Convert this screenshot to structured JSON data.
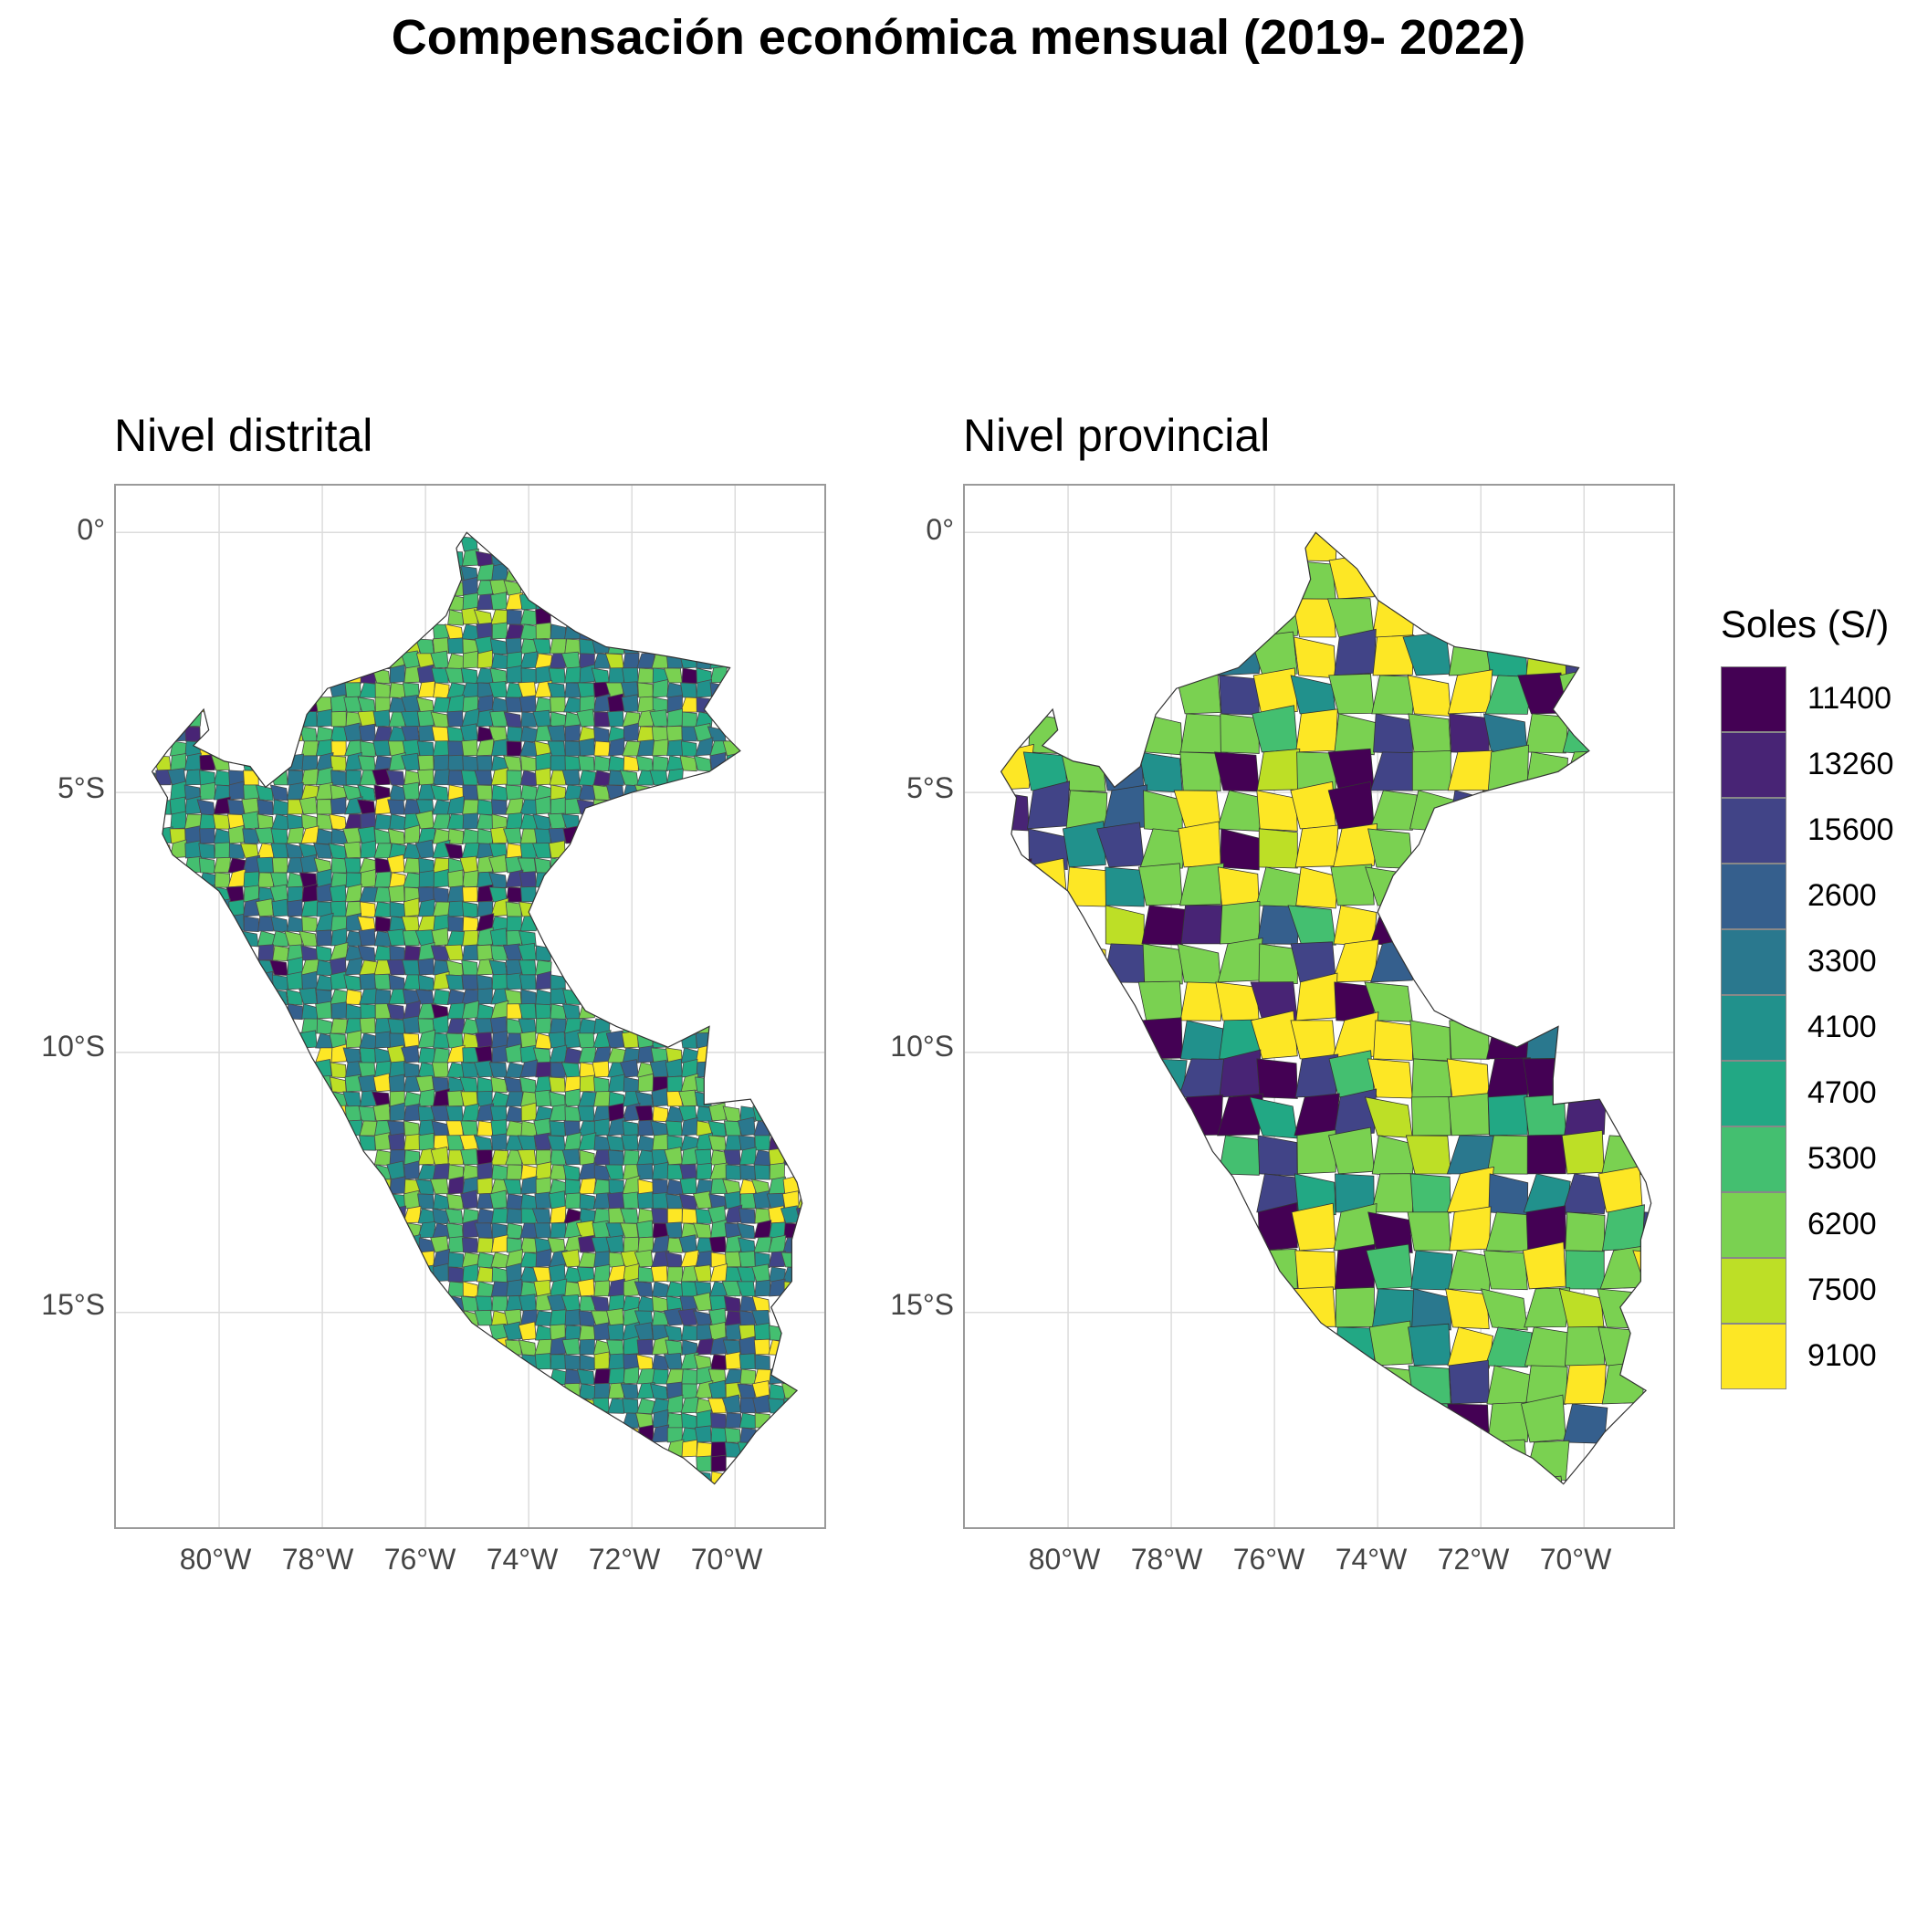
{
  "title": "Compensación económica mensual (2019- 2022)",
  "panels": [
    {
      "title": "Nivel distrital",
      "y_ticks": [
        "0°",
        "5°S",
        "10°S",
        "15°S"
      ],
      "x_ticks": [
        "80°W",
        "78°W",
        "76°W",
        "74°W",
        "72°W",
        "70°W"
      ]
    },
    {
      "title": "Nivel provincial",
      "y_ticks": [
        "0°",
        "5°S",
        "10°S",
        "15°S"
      ],
      "x_ticks": [
        "80°W",
        "78°W",
        "76°W",
        "74°W",
        "72°W",
        "70°W"
      ]
    }
  ],
  "map_extent": {
    "lon": [
      -82,
      -68.2
    ],
    "lat": [
      -19.2,
      0.9
    ]
  },
  "legend": {
    "title": "Soles (S/)",
    "items": [
      {
        "label": "11400",
        "color": "#440154"
      },
      {
        "label": "13260",
        "color": "#482475"
      },
      {
        "label": "15600",
        "color": "#414487"
      },
      {
        "label": "2600",
        "color": "#355f8d"
      },
      {
        "label": "3300",
        "color": "#2a788e"
      },
      {
        "label": "4100",
        "color": "#21918c"
      },
      {
        "label": "4700",
        "color": "#22a884"
      },
      {
        "label": "5300",
        "color": "#44bf70"
      },
      {
        "label": "6200",
        "color": "#7ad151"
      },
      {
        "label": "7500",
        "color": "#bddf26"
      },
      {
        "label": "9100",
        "color": "#fde725"
      }
    ]
  }
}
